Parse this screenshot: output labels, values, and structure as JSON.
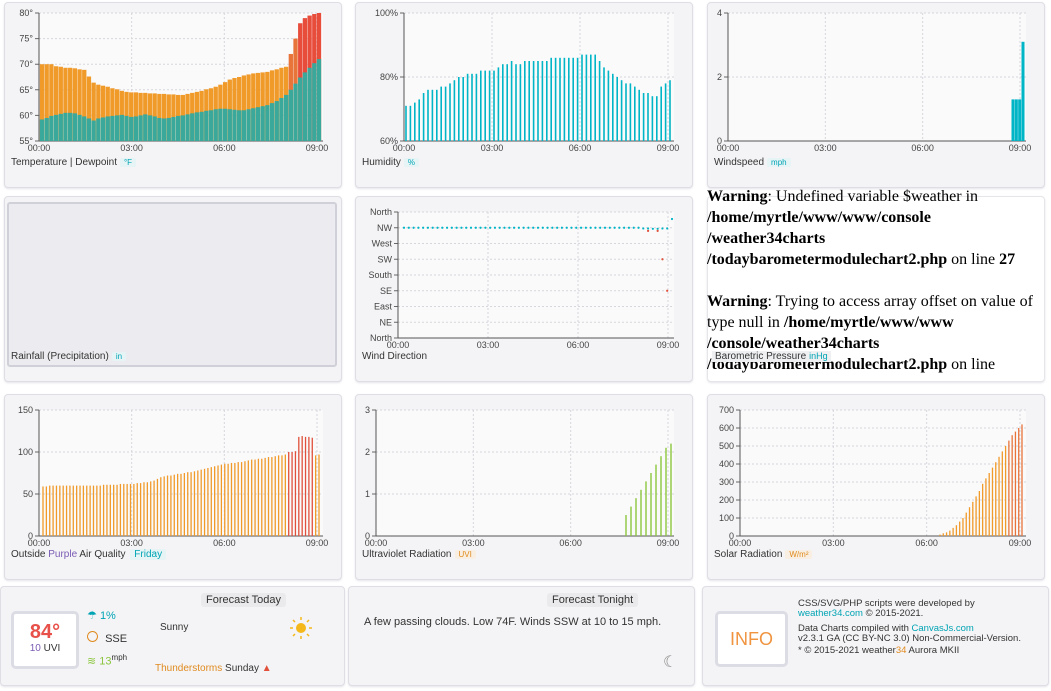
{
  "time_ticks": [
    "00:00",
    "03:00",
    "06:00",
    "09:00"
  ],
  "charts": {
    "temperature": {
      "label": "Temperature | Dewpoint",
      "unit": "°F",
      "y_ticks": [
        "80°",
        "75°",
        "70°",
        "65°",
        "60°",
        "55°"
      ],
      "y_range": [
        55,
        80
      ],
      "chart_data": {
        "type": "bar",
        "series": [
          {
            "name": "Temperature",
            "values": [
              70,
              70,
              70,
              69.6,
              69.5,
              69.3,
              69.3,
              69.2,
              69,
              68.9,
              67.6,
              66.4,
              66,
              65.8,
              65.6,
              65.3,
              65.1,
              64.8,
              64.6,
              64.5,
              64.5,
              64.4,
              64.4,
              64.3,
              64.3,
              64.2,
              64.2,
              64.1,
              64.1,
              64.0,
              64.0,
              64.2,
              64.4,
              64.6,
              64.8,
              65.1,
              65.3,
              65.6,
              66,
              66.5,
              67,
              67.3,
              67.5,
              67.8,
              68.0,
              68.2,
              68.3,
              68.4,
              68.5,
              68.8,
              69,
              69.3,
              69.5,
              72,
              75,
              78,
              79,
              79.5,
              79.8,
              80
            ]
          },
          {
            "name": "Dewpoint",
            "values": [
              59.2,
              59.5,
              59.9,
              60.1,
              60.3,
              60.5,
              60.5,
              60.4,
              60.1,
              59.8,
              59.4,
              59.0,
              59.4,
              59.6,
              59.8,
              59.9,
              60.0,
              60.1,
              59.9,
              59.7,
              59.8,
              60.0,
              60.2,
              60.0,
              59.8,
              59.5,
              59.4,
              59.5,
              59.7,
              59.9,
              60.0,
              60.2,
              60.4,
              60.6,
              60.7,
              60.9,
              61.0,
              61.2,
              61.3,
              61.3,
              61.2,
              61.1,
              61.0,
              61.0,
              61.2,
              61.4,
              61.6,
              61.8,
              62.0,
              62.4,
              62.8,
              63.4,
              64.0,
              65.0,
              66.2,
              67.4,
              68.4,
              69.3,
              70.2,
              71.0
            ]
          }
        ]
      }
    },
    "humidity": {
      "label": "Humidity",
      "unit": "%",
      "y_ticks": [
        "100%",
        "80%",
        "60%"
      ],
      "y_range": [
        60,
        100
      ],
      "chart_data": {
        "type": "bar",
        "values": [
          71,
          71,
          72,
          73,
          75,
          76,
          76,
          76,
          77,
          77,
          78,
          79,
          80,
          80,
          81,
          81,
          81,
          82,
          82,
          82,
          82,
          83,
          84,
          84,
          85,
          84,
          84,
          85,
          85,
          85,
          85,
          85,
          85,
          86,
          86,
          86,
          86,
          86,
          86,
          86,
          87,
          87,
          87,
          87,
          85,
          83,
          82,
          81,
          80,
          79,
          78,
          78,
          77,
          76,
          75,
          75,
          74,
          74,
          77,
          78,
          79
        ]
      }
    },
    "windspeed": {
      "label": "Windspeed",
      "unit": "mph",
      "y_ticks": [
        "4",
        "2",
        "0"
      ],
      "y_range": [
        0,
        4
      ],
      "chart_data": {
        "type": "bar",
        "x": [
          "09:00",
          "09:05",
          "09:10",
          "09:15"
        ],
        "values": [
          1.3,
          1.3,
          1.3,
          3.1
        ]
      }
    },
    "rainfall": {
      "label": "Rainfall (Precipitation)",
      "unit": "in"
    },
    "wind_direction": {
      "label": "Wind Direction",
      "y_ticks": [
        "North",
        "NW",
        "West",
        "SW",
        "South",
        "SE",
        "East",
        "NE",
        "North"
      ],
      "chart_data": {
        "type": "scatter",
        "series": [
          {
            "name": "Wind direction",
            "values": [
              315,
              315,
              315,
              315,
              315,
              315,
              315,
              315,
              315,
              315,
              315,
              315,
              315,
              315,
              315,
              315,
              315,
              315,
              315,
              315,
              315,
              315,
              315,
              315,
              315,
              315,
              315,
              315,
              315,
              315,
              315,
              315,
              315,
              315,
              315,
              315,
              315,
              315,
              315,
              315,
              315,
              315,
              315,
              315,
              315,
              315,
              315,
              315,
              315,
              315,
              313,
              313,
              312,
              312,
              313,
              313,
              340
            ]
          },
          {
            "name": "Gust",
            "x_index": [
              51,
              53,
              54,
              55
            ],
            "values": [
              306,
              306,
              225,
              135
            ]
          }
        ]
      }
    },
    "barometer": {
      "label": "Barometric Pressure",
      "unit": "inHg"
    },
    "aqi": {
      "label_prefix": "Outside",
      "label_purple": "Purple",
      "label_mid": "Air Quality",
      "label_day": "Friday",
      "y_ticks": [
        "150",
        "100",
        "50",
        "0"
      ],
      "y_range": [
        0,
        150
      ],
      "chart_data": {
        "type": "bar",
        "values": [
          59,
          59,
          60,
          60,
          60,
          60,
          60,
          60,
          60,
          60,
          60,
          60,
          60,
          60,
          60,
          60,
          60,
          60,
          61,
          61,
          61,
          61,
          61,
          62,
          62,
          62,
          62,
          62,
          63,
          63,
          64,
          64,
          65,
          66,
          68,
          70,
          71,
          72,
          72,
          73,
          74,
          74,
          75,
          76,
          76,
          77,
          78,
          79,
          80,
          81,
          82,
          83,
          84,
          85,
          86,
          86,
          87,
          87,
          88,
          88,
          89,
          90,
          91,
          91,
          92,
          92,
          93,
          94,
          94,
          95,
          96,
          96,
          97,
          100,
          100,
          101,
          118,
          119,
          118,
          118,
          117,
          96,
          97
        ]
      }
    },
    "uv": {
      "label": "Ultraviolet Radiation",
      "unit": "UVI",
      "y_ticks": [
        "3",
        "2",
        "1",
        "0"
      ],
      "y_range": [
        0,
        3
      ],
      "chart_data": {
        "type": "bar",
        "values": [
          0.5,
          0.7,
          0.9,
          1.1,
          1.3,
          1.5,
          1.7,
          1.9,
          2.1,
          2.2
        ]
      }
    },
    "solar": {
      "label": "Solar Radiation",
      "unit": "W/m²",
      "y_ticks": [
        "700",
        "600",
        "500",
        "400",
        "300",
        "200",
        "100",
        "0"
      ],
      "y_range": [
        0,
        700
      ],
      "chart_data": {
        "type": "bar",
        "values": [
          8,
          15,
          20,
          30,
          45,
          60,
          80,
          100,
          130,
          160,
          190,
          220,
          250,
          290,
          320,
          350,
          380,
          410,
          440,
          470,
          500,
          530,
          560,
          580,
          600,
          620
        ]
      }
    }
  },
  "warning": {
    "w1_label": "Warning",
    "w1_text": ": Undefined variable $weather in ",
    "w1_path": "/home/myrtle/www/www/console /weather34charts /todaybarometermodulechart2.php",
    "w1_online": " on line ",
    "w1_line": "27",
    "w2_label": "Warning",
    "w2_text": ": Trying to access array offset on value of type null in ",
    "w2_path": "/home/myrtle/www/www /console/weather34charts /todaybarometermodulechart2.php",
    "w2_online": " on line"
  },
  "forecast_today": {
    "title": "Forecast Today",
    "temp": "84°",
    "uvi_value": "10",
    "uvi_label": "UVI",
    "rain_pct": "1%",
    "wind_dir": "SSE",
    "wind_speed": "13",
    "wind_unit": "mph",
    "condition": "Sunny",
    "alert_type": "Thunderstorms",
    "alert_day": "Sunday"
  },
  "forecast_tonight": {
    "title": "Forecast Tonight",
    "text": "A few passing clouds. Low 74F. Winds SSW at 10 to 15 mph."
  },
  "info": {
    "badge": "INFO",
    "line1": "CSS/SVG/PHP scripts were developed by",
    "line1_link": "weather34.com",
    "line1_rest": " © 2015-2021.",
    "line2": "Data Charts compiled with ",
    "line2_link": "CanvasJs.com",
    "line2_rest": " v2.3.1 GA (CC BY-NC 3.0) Non-Commercial-Version.",
    "line3": "* © 2015-2021 weather",
    "line3_num": "34",
    "line3_rest": " Aurora MKII"
  },
  "colors": {
    "temp": "#f09a2a",
    "temp_hot": "#e84c3a",
    "dew": "#3aa89a",
    "teal": "#00b5c6",
    "aqi": "#f09a2a",
    "aqi_red": "#e0503a",
    "uv": "#8cc63f",
    "solar": "#f09a2a",
    "grid": "#d6d6dc"
  }
}
